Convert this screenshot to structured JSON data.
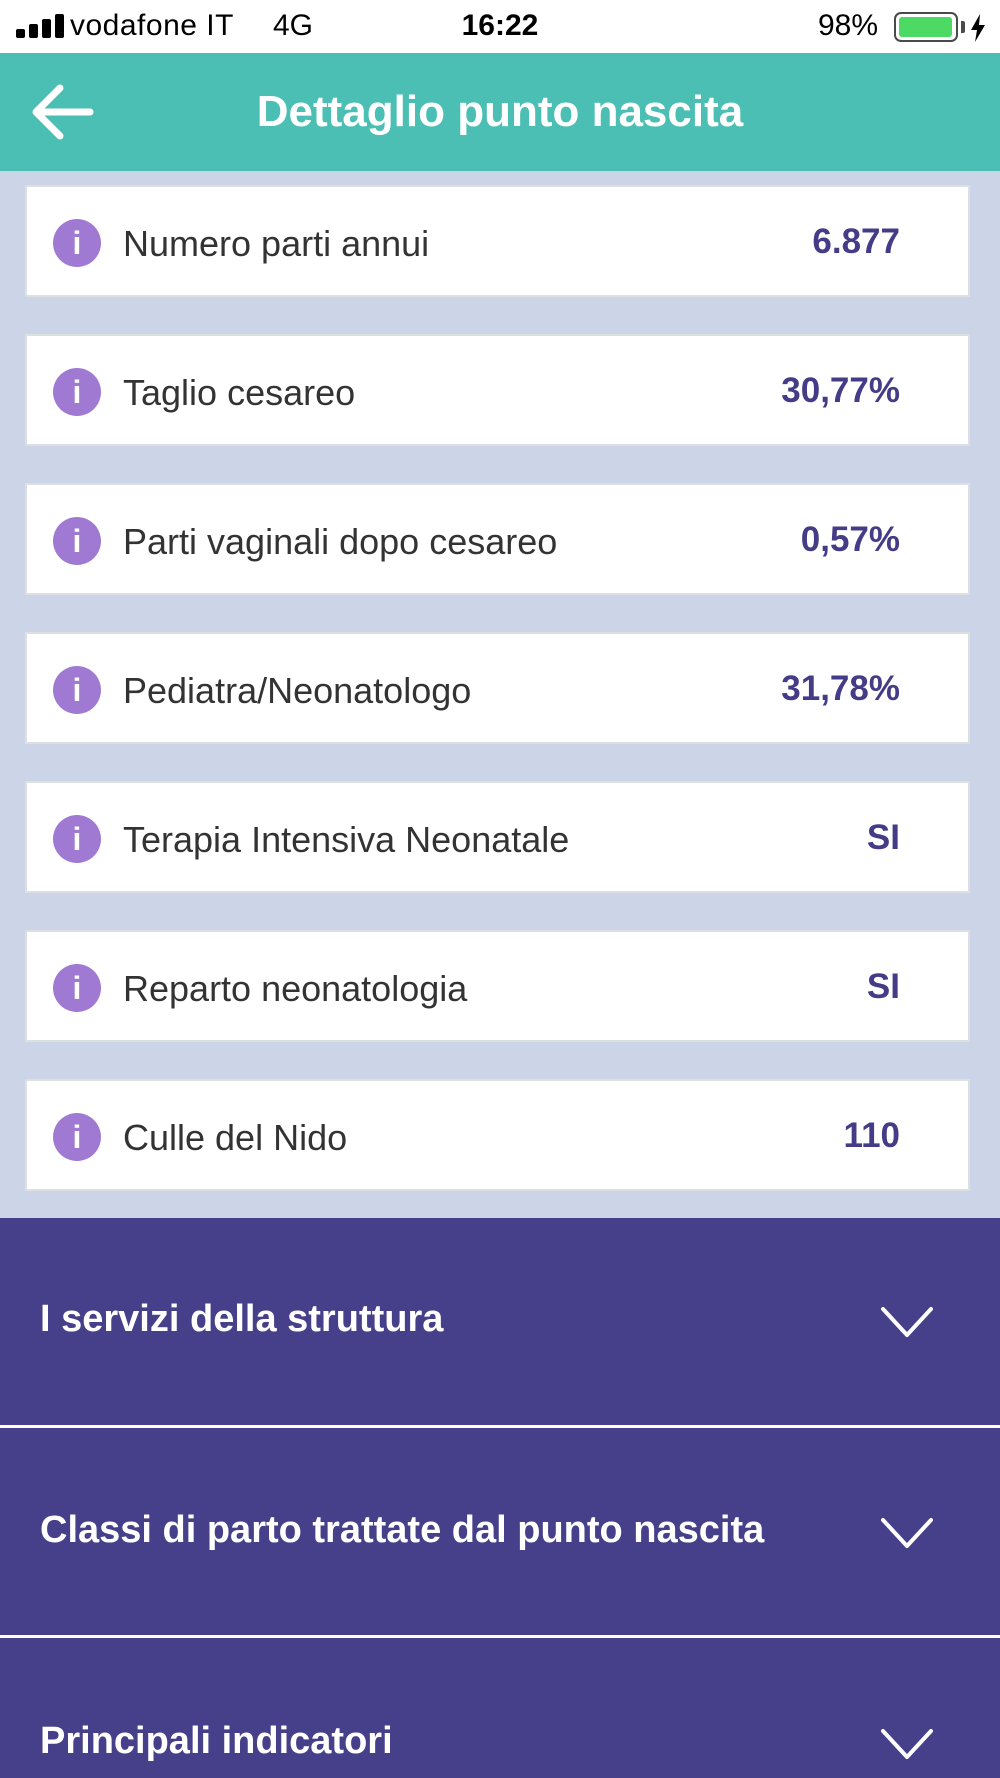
{
  "status_bar": {
    "carrier": "vodafone IT",
    "network": "4G",
    "time": "16:22",
    "battery": "98%",
    "battery_level": 0.98
  },
  "header": {
    "title": "Dettaglio punto nascita",
    "back_icon": "arrow-left-icon"
  },
  "colors": {
    "header_bg": "#4bbfb3",
    "list_bg": "#ccd4e8",
    "value_text": "#443c87",
    "info_icon": "#a07ad2",
    "accordion_bg": "#463f89"
  },
  "stats": [
    {
      "label": "Numero parti annui",
      "value": "6.877"
    },
    {
      "label": "Taglio cesareo",
      "value": "30,77%"
    },
    {
      "label": "Parti vaginali dopo cesareo",
      "value": "0,57%"
    },
    {
      "label": "Pediatra/Neonatologo",
      "value": "31,78%"
    },
    {
      "label": "Terapia Intensiva Neonatale",
      "value": "SI"
    },
    {
      "label": "Reparto neonatologia",
      "value": "SI"
    },
    {
      "label": "Culle del Nido",
      "value": "110"
    }
  ],
  "info_icon_glyph": "i",
  "sections": [
    {
      "label": "I servizi della struttura",
      "icon": "chevron-down-icon"
    },
    {
      "label": "Classi di parto trattate dal punto nascita",
      "icon": "chevron-down-icon"
    },
    {
      "label": "Principali indicatori",
      "icon": "chevron-down-icon"
    }
  ]
}
